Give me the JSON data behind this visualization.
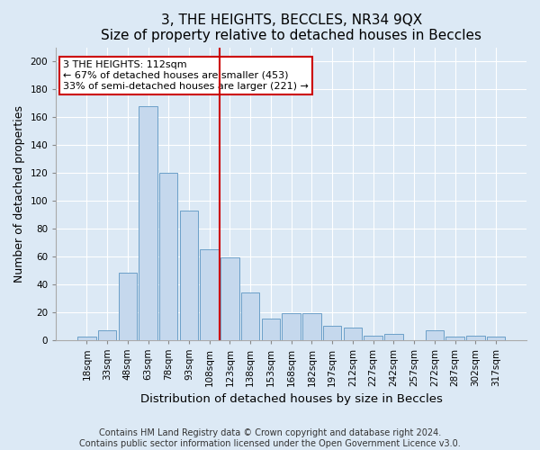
{
  "title": "3, THE HEIGHTS, BECCLES, NR34 9QX",
  "subtitle": "Size of property relative to detached houses in Beccles",
  "xlabel": "Distribution of detached houses by size in Beccles",
  "ylabel": "Number of detached properties",
  "footer_line1": "Contains HM Land Registry data © Crown copyright and database right 2024.",
  "footer_line2": "Contains public sector information licensed under the Open Government Licence v3.0.",
  "categories": [
    "18sqm",
    "33sqm",
    "48sqm",
    "63sqm",
    "78sqm",
    "93sqm",
    "108sqm",
    "123sqm",
    "138sqm",
    "153sqm",
    "168sqm",
    "182sqm",
    "197sqm",
    "212sqm",
    "227sqm",
    "242sqm",
    "257sqm",
    "272sqm",
    "287sqm",
    "302sqm",
    "317sqm"
  ],
  "values": [
    2,
    7,
    48,
    168,
    120,
    93,
    65,
    59,
    34,
    15,
    19,
    19,
    10,
    9,
    3,
    4,
    0,
    7,
    2,
    3,
    2
  ],
  "bar_color": "#c5d8ed",
  "bar_edge_color": "#6b9fc8",
  "ref_line_color": "#cc0000",
  "annotation_line1": "3 THE HEIGHTS: 112sqm",
  "annotation_line2": "← 67% of detached houses are smaller (453)",
  "annotation_line3": "33% of semi-detached houses are larger (221) →",
  "annotation_box_facecolor": "#ffffff",
  "annotation_box_edgecolor": "#cc0000",
  "bg_color": "#dce9f5",
  "ylim": [
    0,
    210
  ],
  "yticks": [
    0,
    20,
    40,
    60,
    80,
    100,
    120,
    140,
    160,
    180,
    200
  ],
  "grid_color": "#ffffff",
  "title_fontsize": 11,
  "axis_label_fontsize": 9,
  "tick_fontsize": 7.5,
  "footer_fontsize": 7,
  "annotation_fontsize": 8
}
